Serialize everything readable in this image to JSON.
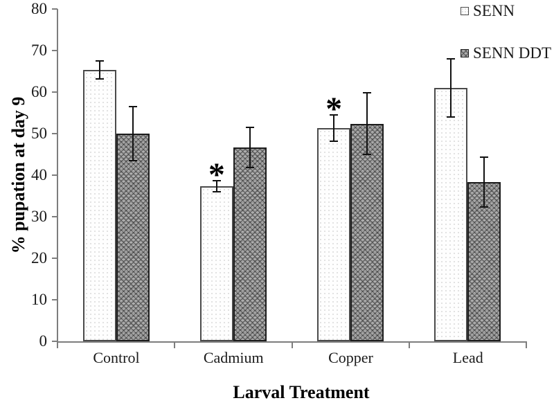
{
  "chart_data": {
    "type": "bar",
    "title": "",
    "xlabel": "Larval Treatment",
    "ylabel": "% pupation at day 9",
    "categories": [
      "Control",
      "Cadmium",
      "Copper",
      "Lead"
    ],
    "series": [
      {
        "name": "SENN",
        "fill": "white-dotted",
        "values": [
          65.3,
          37.3,
          51.3,
          61.0
        ],
        "errors": [
          2.3,
          1.5,
          3.3,
          7.2
        ],
        "significant": [
          false,
          true,
          true,
          false
        ]
      },
      {
        "name": "SENN DDT",
        "fill": "gray-crosshatch",
        "values": [
          50.0,
          46.6,
          52.4,
          38.3
        ],
        "errors": [
          6.7,
          5.0,
          7.6,
          6.2
        ],
        "significant": [
          false,
          false,
          false,
          false
        ]
      }
    ],
    "ylim": [
      0,
      80
    ],
    "yticks": [
      0,
      10,
      20,
      30,
      40,
      50,
      60,
      70,
      80
    ],
    "grid": false,
    "legend_position": "top-right",
    "significance_marker": "*",
    "error_bar_style": "caps, symmetric",
    "colors": {
      "axis": "#7d7d7d",
      "text": "#1a1a1a",
      "senn_bar_fill": "#fefefe",
      "senn_bar_border": "#4a4a4a",
      "ddt_bar_fill": "#9e9e9e",
      "ddt_bar_border": "#1c1c1c",
      "error_bar": "#111111"
    }
  }
}
